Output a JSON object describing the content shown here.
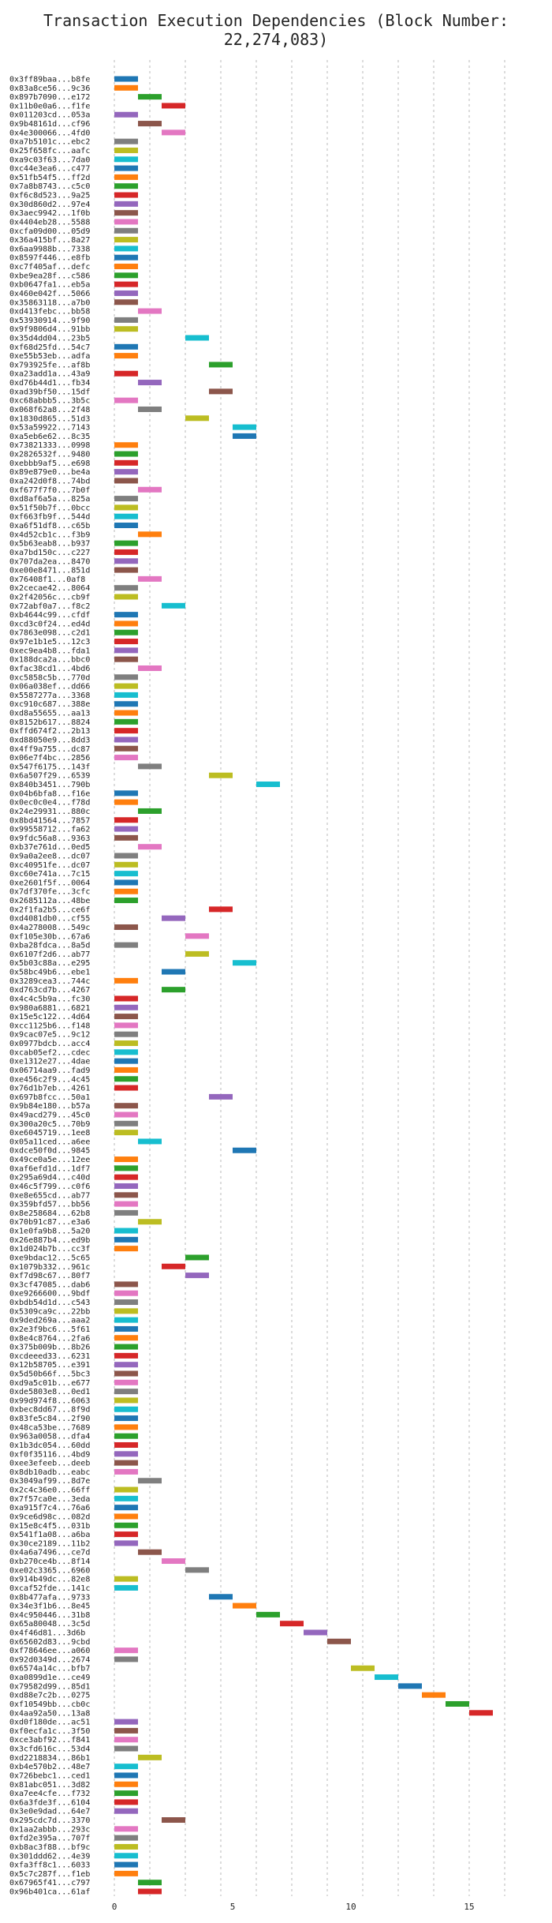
{
  "chart_title": "Transaction Execution Dependencies (Block Number: 22,274,083)",
  "chart_data": {
    "type": "bar",
    "orientation": "horizontal",
    "title": "Transaction Execution Dependencies (Block Number: 22,274,083)",
    "xlim": [
      0,
      17
    ],
    "x_ticks": [
      0,
      5,
      10,
      15
    ],
    "grid": true,
    "palette": [
      "#1f77b4",
      "#ff7f0e",
      "#2ca02c",
      "#d62728",
      "#9467bd",
      "#8c564b",
      "#e377c2",
      "#7f7f7f",
      "#bcbd22",
      "#17becf"
    ],
    "bars": [
      [
        "0x3ff89baa...b8fe",
        0,
        1
      ],
      [
        "0x83a8ce56...9c36",
        0,
        1
      ],
      [
        "0x897b7090...e172",
        1,
        2
      ],
      [
        "0x11b0e0a6...f1fe",
        2,
        3
      ],
      [
        "0x011203cd...053a",
        0,
        1
      ],
      [
        "0x9b48161d...cf96",
        1,
        2
      ],
      [
        "0x4e300066...4fd0",
        2,
        3
      ],
      [
        "0xa7b5101c...ebc2",
        0,
        1
      ],
      [
        "0x25f658fc...aafc",
        0,
        1
      ],
      [
        "0xa9c03f63...7da0",
        0,
        1
      ],
      [
        "0xc44e3ea6...c477",
        0,
        1
      ],
      [
        "0x51fb54f5...ff2d",
        0,
        1
      ],
      [
        "0x7a8b8743...c5c0",
        0,
        1
      ],
      [
        "0xf6c8d523...9a25",
        0,
        1
      ],
      [
        "0x30d860d2...97e4",
        0,
        1
      ],
      [
        "0x3aec9942...1f0b",
        0,
        1
      ],
      [
        "0x4404eb28...5588",
        0,
        1
      ],
      [
        "0xcfa09d00...05d9",
        0,
        1
      ],
      [
        "0x36a415bf...8a27",
        0,
        1
      ],
      [
        "0x6aa9988b...7338",
        0,
        1
      ],
      [
        "0x8597f446...e8fb",
        0,
        1
      ],
      [
        "0xc7f405af...defc",
        0,
        1
      ],
      [
        "0xbe9ea28f...c586",
        0,
        1
      ],
      [
        "0xb0647fa1...eb5a",
        0,
        1
      ],
      [
        "0x460e042f...5066",
        0,
        1
      ],
      [
        "0x35863118...a7b0",
        0,
        1
      ],
      [
        "0xd413febc...bb58",
        1,
        2
      ],
      [
        "0x53930914...9f90",
        0,
        1
      ],
      [
        "0x9f9806d4...91bb",
        0,
        1
      ],
      [
        "0x35d4dd04...23b5",
        3,
        4
      ],
      [
        "0xf68d25fd...54c7",
        0,
        1
      ],
      [
        "0xe55b53eb...adfa",
        0,
        1
      ],
      [
        "0x793925fe...af8b",
        4,
        5
      ],
      [
        "0xa23add1a...43a9",
        0,
        1
      ],
      [
        "0xd76b44d1...fb34",
        1,
        2
      ],
      [
        "0xad39bf50...15df",
        4,
        5
      ],
      [
        "0xc68abbb5...3b5c",
        0,
        1
      ],
      [
        "0x068f62a8...2f48",
        1,
        2
      ],
      [
        "0x1830d865...51d3",
        3,
        4
      ],
      [
        "0x53a59922...7143",
        5,
        6
      ],
      [
        "0xa5eb6e62...8c35",
        5,
        6
      ],
      [
        "0x73821333...0998",
        0,
        1
      ],
      [
        "0x2826532f...9480",
        0,
        1
      ],
      [
        "0xebbb9af5...e698",
        0,
        1
      ],
      [
        "0x89e879e0...be4a",
        0,
        1
      ],
      [
        "0xa242d0f8...74bd",
        0,
        1
      ],
      [
        "0xf677f7f0...7b0f",
        1,
        2
      ],
      [
        "0xd8af6a5a...825a",
        0,
        1
      ],
      [
        "0x51f50b7f...0bcc",
        0,
        1
      ],
      [
        "0xf663fb9f...544d",
        0,
        1
      ],
      [
        "0xa6f51df8...c65b",
        0,
        1
      ],
      [
        "0x4d52cb1c...f3b9",
        1,
        2
      ],
      [
        "0x5b63eab8...b937",
        0,
        1
      ],
      [
        "0xa7bd150c...c227",
        0,
        1
      ],
      [
        "0x707da2ea...8470",
        0,
        1
      ],
      [
        "0xe00e8471...851d",
        0,
        1
      ],
      [
        "0x76408f1...0af8",
        1,
        2
      ],
      [
        "0x2cecae42...8064",
        0,
        1
      ],
      [
        "0x2f42056c...cb9f",
        0,
        1
      ],
      [
        "0x72abf0a7...f8c2",
        2,
        3
      ],
      [
        "0xb4644c99...cfdf",
        0,
        1
      ],
      [
        "0xcd3c0f24...ed4d",
        0,
        1
      ],
      [
        "0x7863e098...c2d1",
        0,
        1
      ],
      [
        "0x97e1b1e5...12c3",
        0,
        1
      ],
      [
        "0xec9ea4b8...fda1",
        0,
        1
      ],
      [
        "0x188dca2a...bbc0",
        0,
        1
      ],
      [
        "0xfac38cd1...4bd6",
        1,
        2
      ],
      [
        "0xc5858c5b...770d",
        0,
        1
      ],
      [
        "0x06a038ef...dd66",
        0,
        1
      ],
      [
        "0x5587277a...3368",
        0,
        1
      ],
      [
        "0xc910c687...388e",
        0,
        1
      ],
      [
        "0xd8a55655...aa13",
        0,
        1
      ],
      [
        "0x8152b617...8824",
        0,
        1
      ],
      [
        "0xffd674f2...2b13",
        0,
        1
      ],
      [
        "0xd88050e9...8dd3",
        0,
        1
      ],
      [
        "0x4ff9a755...dc87",
        0,
        1
      ],
      [
        "0x06e7f4bc...2856",
        0,
        1
      ],
      [
        "0x547f6175...143f",
        1,
        2
      ],
      [
        "0x6a507f29...6539",
        4,
        5
      ],
      [
        "0x840b3451...790b",
        6,
        7
      ],
      [
        "0x04b6bfa8...f16e",
        0,
        1
      ],
      [
        "0x0ec0c0e4...f78d",
        0,
        1
      ],
      [
        "0x24e29931...880c",
        1,
        2
      ],
      [
        "0x8bd41564...7857",
        0,
        1
      ],
      [
        "0x99558712...fa62",
        0,
        1
      ],
      [
        "0x9fdc56a8...9363",
        0,
        1
      ],
      [
        "0xb37e761d...0ed5",
        1,
        2
      ],
      [
        "0x9a0a2ee8...dc07",
        0,
        1
      ],
      [
        "0xc40951fe...dc07",
        0,
        1
      ],
      [
        "0xc60e741a...7c15",
        0,
        1
      ],
      [
        "0xe2601f5f...0064",
        0,
        1
      ],
      [
        "0x7df370fe...3cfc",
        0,
        1
      ],
      [
        "0x2685112a...48be",
        0,
        1
      ],
      [
        "0x2f1fa2b5...ce6f",
        4,
        5
      ],
      [
        "0xd4081db0...cf55",
        2,
        3
      ],
      [
        "0x4a278008...549c",
        0,
        1
      ],
      [
        "0xf105e30b...67a6",
        3,
        4
      ],
      [
        "0xba28fdca...8a5d",
        0,
        1
      ],
      [
        "0x6107f2d6...ab77",
        3,
        4
      ],
      [
        "0x5b03c88a...e295",
        5,
        6
      ],
      [
        "0x58bc49b6...ebe1",
        2,
        3
      ],
      [
        "0x3289cea3...744c",
        0,
        1
      ],
      [
        "0xd763cd7b...4267",
        2,
        3
      ],
      [
        "0x4c4c5b9a...fc30",
        0,
        1
      ],
      [
        "0x980a6881...6821",
        0,
        1
      ],
      [
        "0x15e5c122...4d64",
        0,
        1
      ],
      [
        "0xcc1125b6...f148",
        0,
        1
      ],
      [
        "0x9cac07e5...9c12",
        0,
        1
      ],
      [
        "0x0977bdcb...acc4",
        0,
        1
      ],
      [
        "0xcab05ef2...cdec",
        0,
        1
      ],
      [
        "0xe1312e27...4dae",
        0,
        1
      ],
      [
        "0x06714aa9...fad9",
        0,
        1
      ],
      [
        "0xe456c2f9...4c45",
        0,
        1
      ],
      [
        "0x76d1b7eb...4261",
        0,
        1
      ],
      [
        "0x697b8fcc...50a1",
        4,
        5
      ],
      [
        "0x9b84e180...b57a",
        0,
        1
      ],
      [
        "0x49acd279...45c0",
        0,
        1
      ],
      [
        "0x300a20c5...70b9",
        0,
        1
      ],
      [
        "0xe6045719...1ee8",
        0,
        1
      ],
      [
        "0x05a11ced...a6ee",
        1,
        2
      ],
      [
        "0xdce50f0d...9845",
        5,
        6
      ],
      [
        "0x49ce0a5e...12ee",
        0,
        1
      ],
      [
        "0xaf6efd1d...1df7",
        0,
        1
      ],
      [
        "0x295a69d4...c40d",
        0,
        1
      ],
      [
        "0x46c5f799...c0f6",
        0,
        1
      ],
      [
        "0xe8e655cd...ab77",
        0,
        1
      ],
      [
        "0x359bfd57...bb56",
        0,
        1
      ],
      [
        "0x8e258684...62b8",
        0,
        1
      ],
      [
        "0x70b91c87...e3a6",
        1,
        2
      ],
      [
        "0x1e0fa9b8...5a20",
        0,
        1
      ],
      [
        "0x26e887b4...ed9b",
        0,
        1
      ],
      [
        "0x1d024b7b...cc3f",
        0,
        1
      ],
      [
        "0xe9bdac12...5c65",
        3,
        4
      ],
      [
        "0x1079b332...961c",
        2,
        3
      ],
      [
        "0xf7d98c67...80f7",
        3,
        4
      ],
      [
        "0x3cf47085...dab6",
        0,
        1
      ],
      [
        "0xe9266600...9bdf",
        0,
        1
      ],
      [
        "0xbdb54d1d...c543",
        0,
        1
      ],
      [
        "0x5309ca9c...22bb",
        0,
        1
      ],
      [
        "0x9ded269a...aaa2",
        0,
        1
      ],
      [
        "0x2e3f9bc6...5f61",
        0,
        1
      ],
      [
        "0x8e4c8764...2fa6",
        0,
        1
      ],
      [
        "0x375b009b...8b26",
        0,
        1
      ],
      [
        "0xcdeeed33...6231",
        0,
        1
      ],
      [
        "0x12b58705...e391",
        0,
        1
      ],
      [
        "0x5d50b66f...5bc3",
        0,
        1
      ],
      [
        "0xd9a5c01b...e677",
        0,
        1
      ],
      [
        "0xde5803e8...0ed1",
        0,
        1
      ],
      [
        "0x99d974f8...6063",
        0,
        1
      ],
      [
        "0xbec8dd67...8f9d",
        0,
        1
      ],
      [
        "0x83fe5c84...2f90",
        0,
        1
      ],
      [
        "0x48ca53be...7689",
        0,
        1
      ],
      [
        "0x963a0058...dfa4",
        0,
        1
      ],
      [
        "0x1b3dc054...60dd",
        0,
        1
      ],
      [
        "0xf0f35116...4bd9",
        0,
        1
      ],
      [
        "0xee3efeeb...deeb",
        0,
        1
      ],
      [
        "0x8db10adb...eabc",
        0,
        1
      ],
      [
        "0x3049af99...8d7e",
        1,
        2
      ],
      [
        "0x2c4c36e0...66ff",
        0,
        1
      ],
      [
        "0x7f57ca0e...3eda",
        0,
        1
      ],
      [
        "0xa915f7c4...76a6",
        0,
        1
      ],
      [
        "0x9ce6d98c...082d",
        0,
        1
      ],
      [
        "0x15e8c4f5...031b",
        0,
        1
      ],
      [
        "0x541f1a08...a6ba",
        0,
        1
      ],
      [
        "0x30ce2189...11b2",
        0,
        1
      ],
      [
        "0x4a6a7496...ce7d",
        1,
        2
      ],
      [
        "0xb270ce4b...8f14",
        2,
        3
      ],
      [
        "0xe02c3365...6960",
        3,
        4
      ],
      [
        "0x914b49dc...82e8",
        0,
        1
      ],
      [
        "0xcaf52fde...141c",
        0,
        1
      ],
      [
        "0x8b477afa...9733",
        4,
        5
      ],
      [
        "0x34e3f1b6...8e45",
        5,
        6
      ],
      [
        "0x4c950446...31b8",
        6,
        7
      ],
      [
        "0x65a80048...3c5d",
        7,
        8
      ],
      [
        "0x4f46d81...3d6b",
        8,
        9
      ],
      [
        "0x65602d83...9cbd",
        9,
        10
      ],
      [
        "0xf78646ee...a060",
        0,
        1
      ],
      [
        "0x92d0349d...2674",
        0,
        1
      ],
      [
        "0x6574a14c...bfb7",
        10,
        11
      ],
      [
        "0xa0899d1e...ce49",
        11,
        12
      ],
      [
        "0x79582d99...85d1",
        12,
        13
      ],
      [
        "0xd88e7c2b...0275",
        13,
        14
      ],
      [
        "0xf10549bb...cb0c",
        14,
        15
      ],
      [
        "0x4aa92a50...13a8",
        15,
        16
      ],
      [
        "0xd0f180de...ac51",
        0,
        1
      ],
      [
        "0xf0ecfa1c...3f50",
        0,
        1
      ],
      [
        "0xce3abf92...f841",
        0,
        1
      ],
      [
        "0x3cfd616c...53d4",
        0,
        1
      ],
      [
        "0xd2218834...86b1",
        1,
        2
      ],
      [
        "0xb4e570b2...48e7",
        0,
        1
      ],
      [
        "0x726bebc1...ced1",
        0,
        1
      ],
      [
        "0x81abc051...3d82",
        0,
        1
      ],
      [
        "0xa7ee4cfe...f732",
        0,
        1
      ],
      [
        "0x6a3fde3f...6104",
        0,
        1
      ],
      [
        "0x3e0e9dad...64e7",
        0,
        1
      ],
      [
        "0x295cdc7d...3370",
        2,
        3
      ],
      [
        "0x1aa2abbb...293c",
        0,
        1
      ],
      [
        "0xfd2e395a...707f",
        0,
        1
      ],
      [
        "0xb8ac3f88...bf9c",
        0,
        1
      ],
      [
        "0x301ddd62...4e39",
        0,
        1
      ],
      [
        "0xfa3ff8c1...6033",
        0,
        1
      ],
      [
        "0x5c7c287f...f1eb",
        0,
        1
      ],
      [
        "0x67965f41...c797",
        1,
        2
      ],
      [
        "0x96b401ca...61af",
        1,
        2
      ]
    ]
  }
}
